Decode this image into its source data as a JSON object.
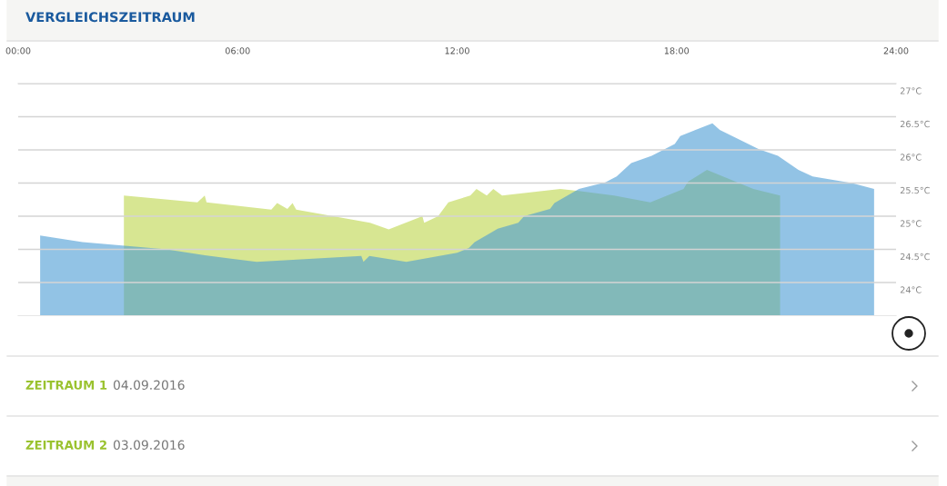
{
  "chart_data": {
    "type": "area",
    "title": "VERGLEICHSZEITRAUM",
    "xlim": [
      0,
      24
    ],
    "xticks": [
      {
        "value": 0,
        "label": "00:00"
      },
      {
        "value": 6,
        "label": "06:00"
      },
      {
        "value": 12,
        "label": "12:00"
      },
      {
        "value": 18,
        "label": "18:00"
      },
      {
        "value": 24,
        "label": "24:00"
      }
    ],
    "ylim": [
      23.5,
      27
    ],
    "yticks": [
      {
        "value": 24,
        "label": "24°C"
      },
      {
        "value": 24.5,
        "label": "24.5°C"
      },
      {
        "value": 25,
        "label": "25°C"
      },
      {
        "value": 25.5,
        "label": "25.5°C"
      },
      {
        "value": 26,
        "label": "26°C"
      },
      {
        "value": 26.5,
        "label": "26.5°C"
      },
      {
        "value": 27,
        "label": "27°C"
      }
    ],
    "grid": "y",
    "legend": false,
    "series": [
      {
        "color": "#bcd64a",
        "x": [
          2.89,
          4.9,
          5.1,
          5.15,
          6.92,
          7.08,
          7.36,
          7.5,
          7.6,
          9.62,
          10.13,
          11.05,
          11.1,
          11.48,
          11.76,
          12.0,
          12.36,
          12.53,
          12.81,
          12.99,
          13.23,
          14.82,
          15.33,
          16.29,
          17.28,
          18.19,
          18.31,
          18.83,
          20.1,
          20.83
        ],
        "values": [
          25.31,
          25.21,
          25.31,
          25.21,
          25.1,
          25.2,
          25.11,
          25.2,
          25.1,
          24.9,
          24.8,
          25.0,
          24.9,
          25.0,
          25.21,
          25.25,
          25.31,
          25.41,
          25.31,
          25.41,
          25.31,
          25.41,
          25.38,
          25.31,
          25.21,
          25.41,
          25.52,
          25.7,
          25.41,
          25.31
        ]
      },
      {
        "color": "#4a9bd4",
        "x": [
          0.6,
          1.76,
          4.06,
          5.1,
          6.52,
          9.38,
          9.44,
          9.6,
          10.61,
          12.0,
          12.32,
          12.48,
          13.11,
          13.67,
          13.83,
          14.54,
          14.66,
          15.33,
          16.05,
          16.36,
          16.76,
          17.32,
          17.95,
          18.1,
          18.98,
          19.18,
          20.25,
          20.77,
          21.33,
          21.72,
          22.79,
          23.4
        ],
        "values": [
          24.71,
          24.61,
          24.5,
          24.41,
          24.31,
          24.4,
          24.31,
          24.4,
          24.31,
          24.45,
          24.52,
          24.61,
          24.81,
          24.9,
          25.0,
          25.11,
          25.2,
          25.41,
          25.51,
          25.6,
          25.8,
          25.91,
          26.09,
          26.21,
          26.4,
          26.3,
          26.01,
          25.91,
          25.7,
          25.6,
          25.5,
          25.41
        ]
      }
    ],
    "annotations": [
      "ZEITRAUM 1",
      "04.09.2016",
      "ZEITRAUM 2",
      "03.09.2016"
    ]
  }
}
